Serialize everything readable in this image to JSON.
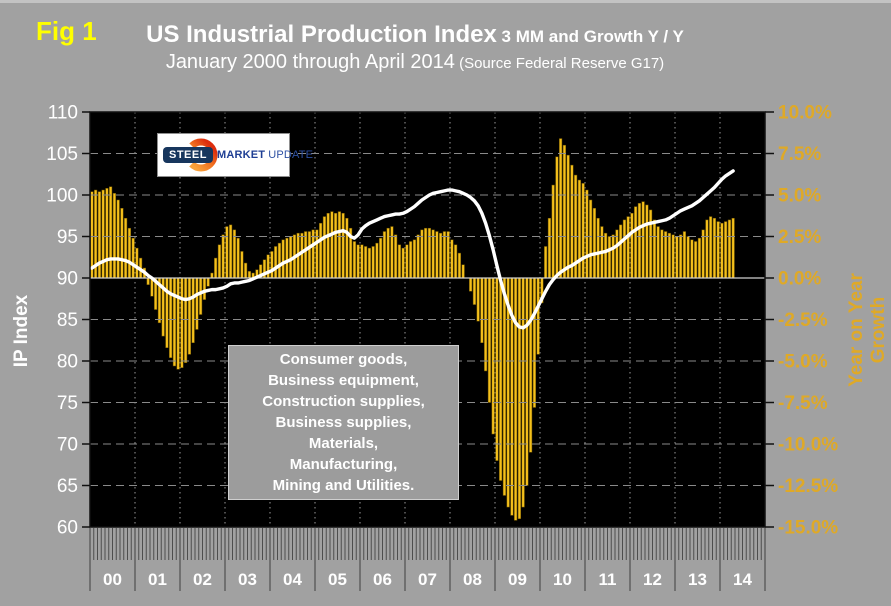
{
  "figure_label": "Fig 1",
  "title": {
    "main": "US Industrial Production Index",
    "main_suffix": " 3 MM and Growth Y / Y",
    "subtitle": "January 2000 through April 2014",
    "subtitle_suffix": " (Source Federal Reserve G17)"
  },
  "logo": {
    "word1": "STEEL",
    "word2": "MARKET",
    "word3": "UPDATE"
  },
  "annotation_box": {
    "lines": [
      "Consumer goods,",
      "Business equipment,",
      "Construction supplies,",
      "Business supplies,",
      "Materials,",
      "Manufacturing,",
      "Mining and Utilities."
    ]
  },
  "left_axis": {
    "title": "IP Index",
    "min": 60,
    "max": 110,
    "step": 5
  },
  "right_axis": {
    "title": "Year on Year Growth",
    "min": -15,
    "max": 10,
    "step": 2.5
  },
  "x_axis": {
    "year_labels": [
      "00",
      "01",
      "02",
      "03",
      "04",
      "05",
      "06",
      "07",
      "08",
      "09",
      "10",
      "11",
      "12",
      "13",
      "14"
    ]
  },
  "colors": {
    "background": "#A1A1A1",
    "plot_background": "#000000",
    "bar_fill": "#F4C01C",
    "bar_edge": "#6E5400",
    "line": "#FFFFFF",
    "left_axis_text": "#FFFFFF",
    "right_axis_text": "#DFA927",
    "figure_label": "#FFFF00",
    "gridline": "#8A8A8A",
    "year_gridline": "#9A9A9A",
    "zero_line": "#CFCFCF",
    "tick": "#111111",
    "comb_tick": "#4D4D4D",
    "year_separator": "#5C5C5C",
    "year_label_text": "#FFFFFF"
  },
  "chart_data": {
    "type": "combo",
    "x_unit": "month",
    "x_start": "2000-01",
    "x_end": "2014-04",
    "months": 172,
    "left_ylim": [
      60,
      110
    ],
    "right_ylim": [
      -15,
      10
    ],
    "grid": true,
    "series": [
      {
        "name": "Growth Y / Y",
        "type": "bar",
        "axis": "right",
        "unit": "%",
        "values": [
          5.2,
          5.3,
          5.2,
          5.3,
          5.4,
          5.5,
          5.1,
          4.7,
          4.2,
          3.6,
          3.0,
          2.4,
          1.8,
          1.2,
          0.6,
          -0.4,
          -1.1,
          -1.9,
          -2.7,
          -3.5,
          -4.2,
          -4.8,
          -5.3,
          -5.5,
          -5.4,
          -5.1,
          -4.6,
          -3.9,
          -3.1,
          -2.2,
          -1.3,
          -0.5,
          0.3,
          1.2,
          2.0,
          2.6,
          3.1,
          3.2,
          2.9,
          2.4,
          1.6,
          0.9,
          0.4,
          0.3,
          0.5,
          0.8,
          1.1,
          1.4,
          1.6,
          1.9,
          2.1,
          2.3,
          2.4,
          2.5,
          2.6,
          2.7,
          2.7,
          2.8,
          2.8,
          2.9,
          2.9,
          3.3,
          3.7,
          3.9,
          4.0,
          3.9,
          4.0,
          3.9,
          3.6,
          3.0,
          2.2,
          2.0,
          2.0,
          1.9,
          1.8,
          1.9,
          2.1,
          2.4,
          2.8,
          3.0,
          3.1,
          2.6,
          2.0,
          1.8,
          2.0,
          2.2,
          2.3,
          2.6,
          2.9,
          3.0,
          3.0,
          2.9,
          2.8,
          2.7,
          2.8,
          2.8,
          2.3,
          2.0,
          1.5,
          0.8,
          0.0,
          -0.8,
          -1.6,
          -2.6,
          -3.9,
          -5.6,
          -7.5,
          -9.4,
          -11.0,
          -12.2,
          -13.1,
          -13.8,
          -14.3,
          -14.6,
          -14.5,
          -13.8,
          -12.5,
          -10.5,
          -7.8,
          -4.6,
          -1.5,
          1.9,
          3.6,
          5.6,
          7.3,
          8.4,
          8.0,
          7.4,
          6.8,
          6.2,
          5.9,
          5.7,
          5.3,
          4.7,
          4.2,
          3.6,
          3.1,
          2.7,
          2.5,
          2.6,
          2.9,
          3.2,
          3.5,
          3.7,
          3.9,
          4.3,
          4.5,
          4.6,
          4.4,
          4.1,
          3.5,
          3.1,
          2.9,
          2.8,
          2.7,
          2.6,
          2.5,
          2.6,
          2.8,
          2.5,
          2.3,
          2.2,
          2.4,
          2.9,
          3.5,
          3.7,
          3.6,
          3.4,
          3.3,
          3.4,
          3.5,
          3.6
        ]
      },
      {
        "name": "IP Index 3 MM",
        "type": "line",
        "axis": "left",
        "values": [
          91.2,
          91.5,
          91.8,
          92.0,
          92.2,
          92.3,
          92.3,
          92.3,
          92.2,
          92.1,
          91.9,
          91.6,
          91.3,
          91.0,
          90.7,
          90.3,
          90.0,
          89.6,
          89.2,
          88.8,
          88.4,
          88.1,
          87.9,
          87.7,
          87.5,
          87.4,
          87.5,
          87.7,
          88.0,
          88.2,
          88.4,
          88.5,
          88.6,
          88.6,
          88.7,
          88.8,
          89.0,
          89.3,
          89.4,
          89.4,
          89.5,
          89.6,
          89.7,
          89.9,
          90.1,
          90.3,
          90.5,
          90.7,
          90.9,
          91.2,
          91.5,
          91.8,
          92.0,
          92.2,
          92.5,
          92.8,
          93.1,
          93.4,
          93.7,
          94.0,
          94.3,
          94.6,
          94.9,
          95.1,
          95.3,
          95.5,
          95.6,
          95.7,
          95.5,
          95.0,
          94.8,
          95.2,
          95.9,
          96.3,
          96.6,
          96.8,
          97.0,
          97.2,
          97.4,
          97.5,
          97.6,
          97.7,
          97.7,
          97.8,
          98.0,
          98.3,
          98.6,
          99.0,
          99.4,
          99.7,
          100.0,
          100.2,
          100.3,
          100.4,
          100.5,
          100.6,
          100.6,
          100.5,
          100.4,
          100.2,
          100.0,
          99.7,
          99.3,
          98.7,
          97.8,
          96.6,
          95.1,
          93.4,
          91.5,
          89.7,
          88.1,
          86.7,
          85.5,
          84.6,
          84.1,
          84.0,
          84.3,
          84.9,
          85.7,
          86.6,
          87.5,
          88.4,
          89.2,
          89.8,
          90.3,
          90.7,
          91.0,
          91.3,
          91.5,
          91.8,
          92.1,
          92.4,
          92.6,
          92.8,
          92.9,
          93.0,
          93.1,
          93.2,
          93.4,
          93.6,
          93.9,
          94.3,
          94.7,
          95.1,
          95.5,
          95.8,
          96.1,
          96.3,
          96.5,
          96.6,
          96.7,
          96.8,
          96.9,
          97.0,
          97.2,
          97.5,
          97.8,
          98.1,
          98.3,
          98.5,
          98.7,
          99.0,
          99.3,
          99.7,
          100.1,
          100.5,
          100.9,
          101.4,
          101.9,
          102.3,
          102.6,
          102.9
        ]
      }
    ]
  }
}
